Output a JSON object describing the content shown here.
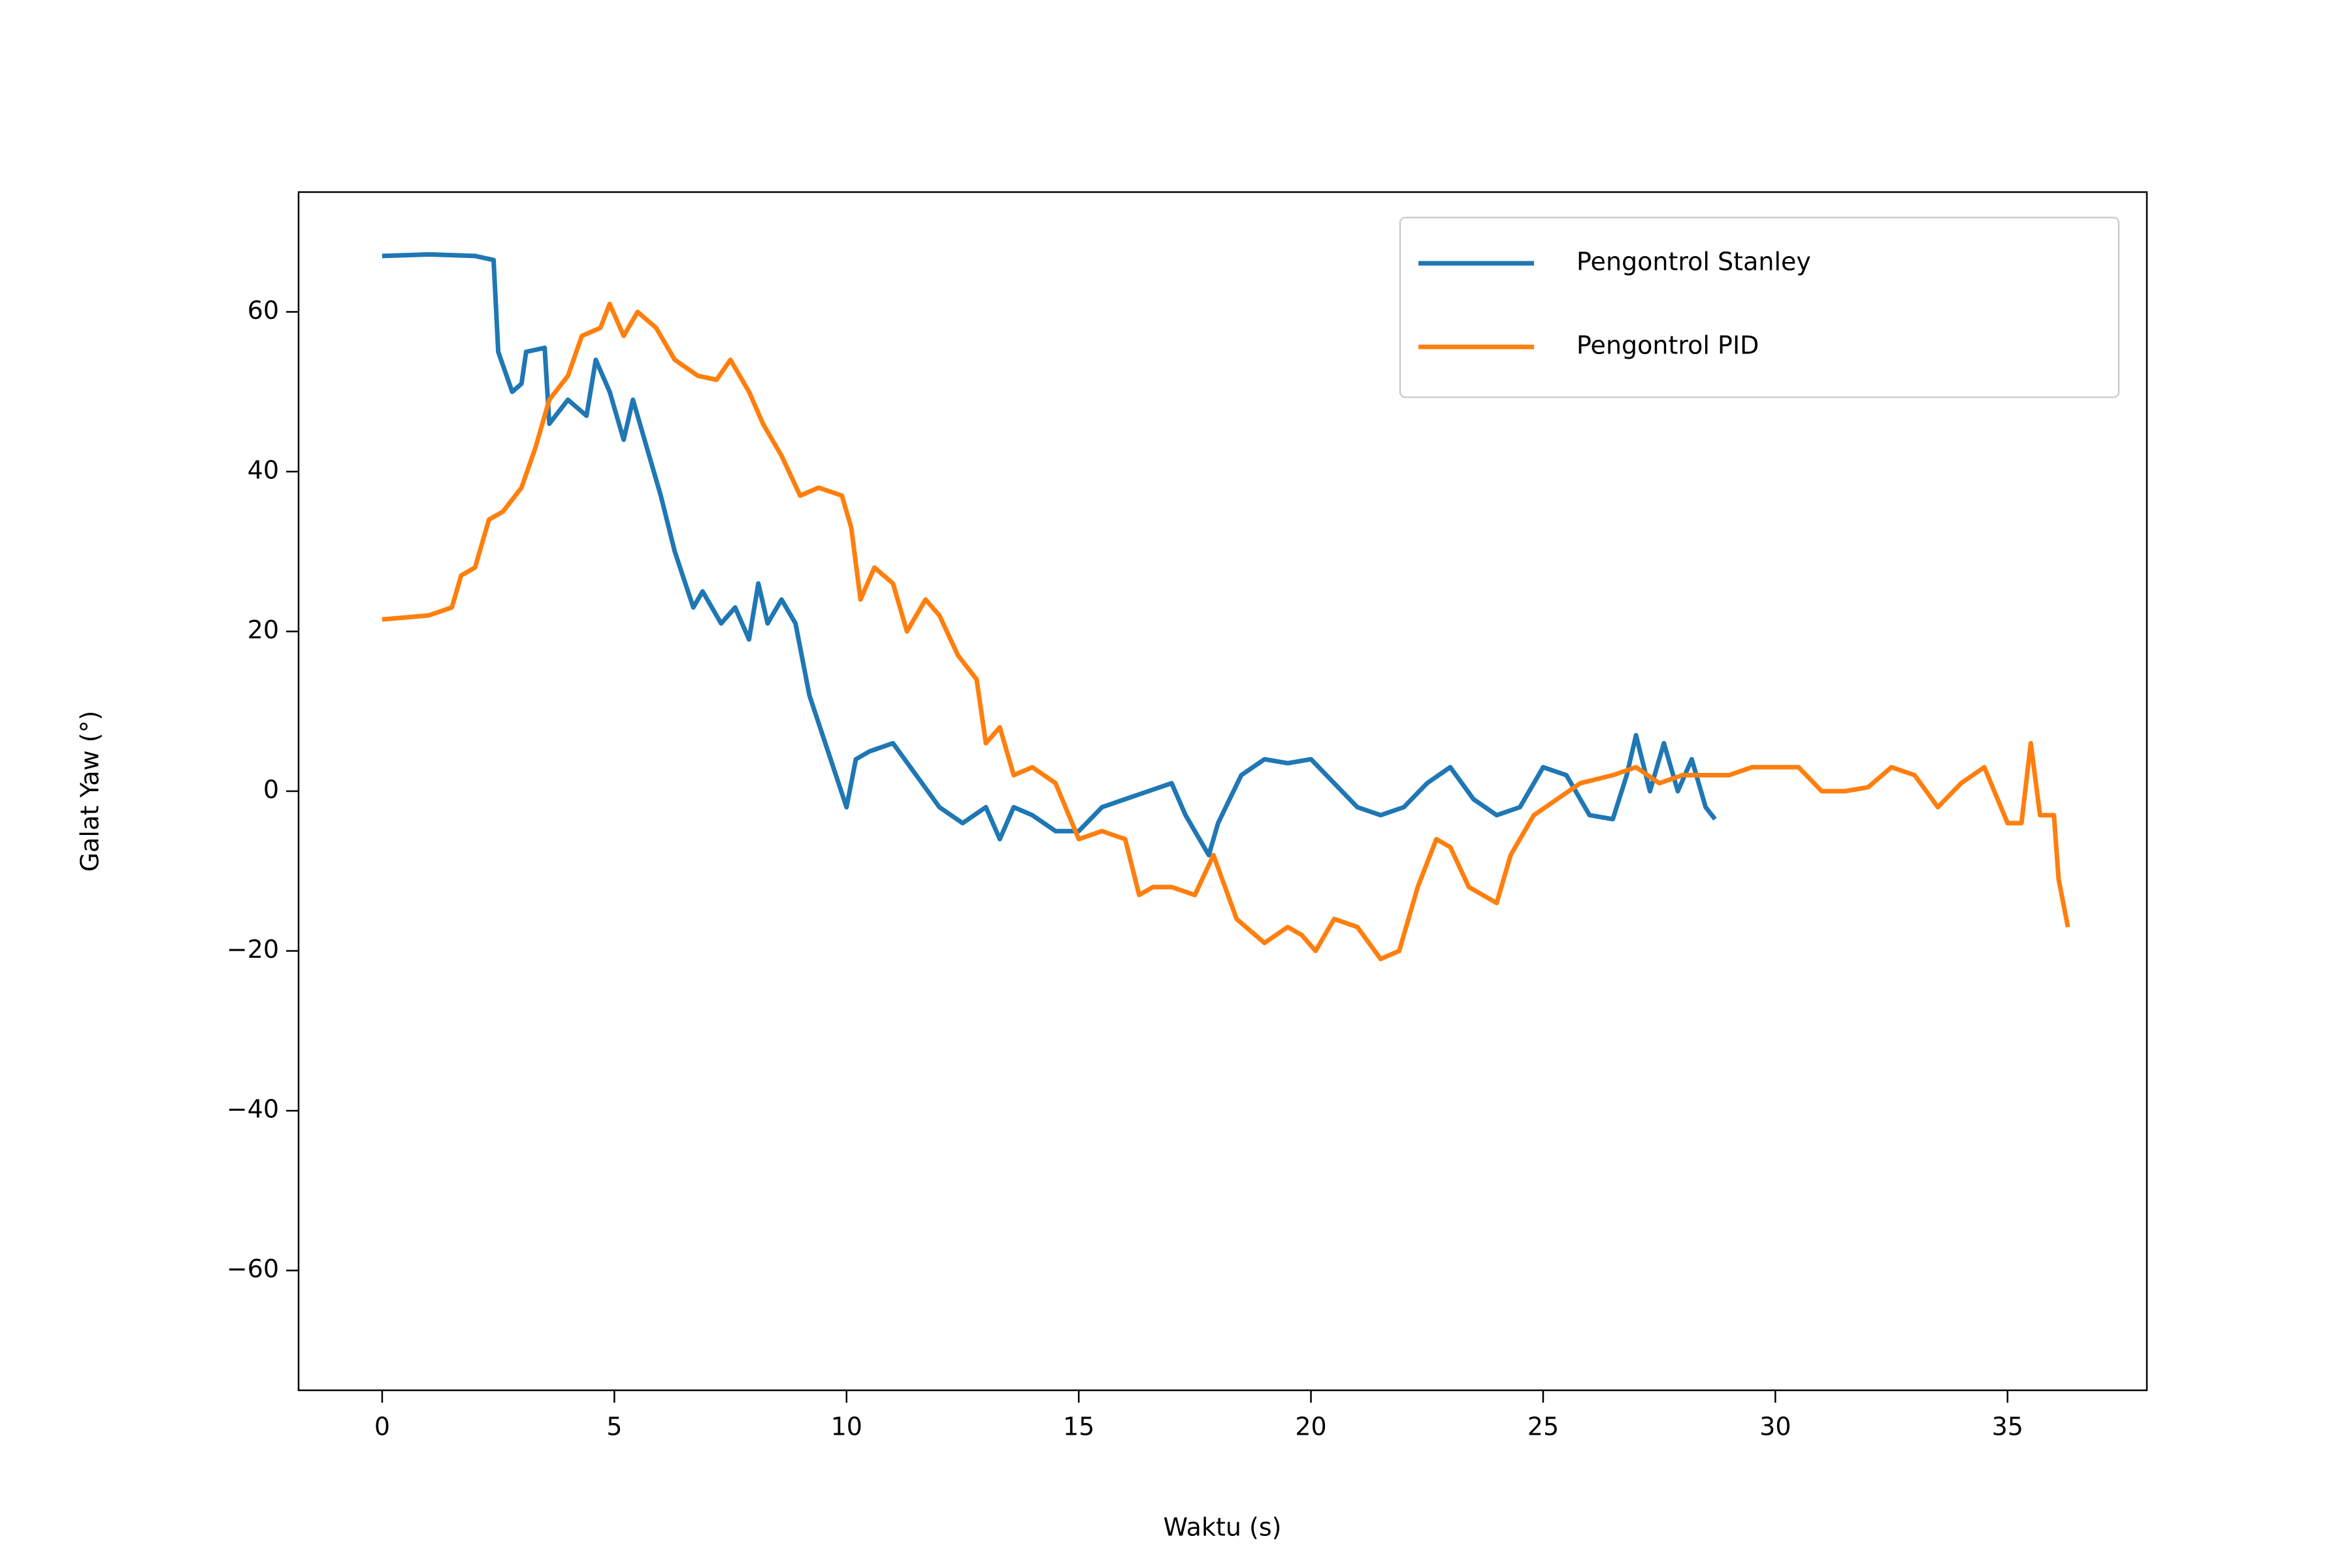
{
  "chart_data": {
    "type": "line",
    "xlabel": "Waktu (s)",
    "ylabel": "Galat Yaw (°)",
    "xlim": [
      -1.8,
      38.0
    ],
    "ylim": [
      -75,
      75
    ],
    "xticks": [
      0,
      5,
      10,
      15,
      20,
      25,
      30,
      35
    ],
    "yticks": [
      {
        "value": -60,
        "label": "−60"
      },
      {
        "value": -40,
        "label": "−40"
      },
      {
        "value": -20,
        "label": "−20"
      },
      0,
      20,
      40,
      60
    ],
    "legend": "upper right",
    "series": [
      {
        "name": "Pengontrol Stanley",
        "color": "#1f77b4",
        "x": [
          0,
          1,
          2,
          2.4,
          2.5,
          2.8,
          3.0,
          3.1,
          3.5,
          3.6,
          4.0,
          4.4,
          4.6,
          4.9,
          5.2,
          5.4,
          5.7,
          6.0,
          6.3,
          6.7,
          6.9,
          7.3,
          7.6,
          7.9,
          8.1,
          8.3,
          8.6,
          8.9,
          9.2,
          9.6,
          10.0,
          10.2,
          10.5,
          11.0,
          11.5,
          12.0,
          12.5,
          13.0,
          13.3,
          13.6,
          14.0,
          14.5,
          15.0,
          15.5,
          16.0,
          16.5,
          17.0,
          17.3,
          17.8,
          18.0,
          18.5,
          19.0,
          19.5,
          20.0,
          20.5,
          21.0,
          21.5,
          22.0,
          22.5,
          23.0,
          23.5,
          24.0,
          24.5,
          25.0,
          25.5,
          26.0,
          26.5,
          26.8,
          27.0,
          27.3,
          27.6,
          27.9,
          28.2,
          28.5,
          28.7
        ],
        "values": [
          67,
          67.2,
          67,
          66.5,
          55,
          50,
          51,
          55,
          55.5,
          46,
          49,
          47,
          54,
          50,
          44,
          49,
          43,
          37,
          30,
          23,
          25,
          21,
          23,
          19,
          26,
          21,
          24,
          21,
          12,
          5,
          -2,
          4,
          5,
          6,
          2,
          -2,
          -4,
          -2,
          -6,
          -2,
          -3,
          -5,
          -5,
          -2,
          -1,
          0,
          1,
          -3,
          -8,
          -4,
          2,
          4,
          3.5,
          4,
          1,
          -2,
          -3,
          -2,
          1,
          3,
          -1,
          -3,
          -2,
          3,
          2,
          -3,
          -3.5,
          2,
          7,
          0,
          6,
          0,
          4,
          -2,
          -3.5
        ]
      },
      {
        "name": "Pengontrol PID",
        "color": "#ff7f0e",
        "x": [
          0,
          1,
          1.5,
          1.7,
          2.0,
          2.3,
          2.6,
          3.0,
          3.3,
          3.6,
          4.0,
          4.3,
          4.7,
          4.9,
          5.2,
          5.5,
          5.9,
          6.3,
          6.8,
          7.2,
          7.5,
          7.9,
          8.2,
          8.6,
          9.0,
          9.4,
          9.9,
          10.1,
          10.3,
          10.6,
          11.0,
          11.3,
          11.7,
          12.0,
          12.4,
          12.8,
          13.0,
          13.3,
          13.6,
          14.0,
          14.5,
          15.0,
          15.5,
          16.0,
          16.3,
          16.6,
          17.0,
          17.5,
          17.9,
          18.4,
          19.0,
          19.5,
          19.8,
          20.1,
          20.5,
          21.0,
          21.5,
          21.9,
          22.3,
          22.7,
          23.0,
          23.4,
          24.0,
          24.3,
          24.8,
          25.3,
          25.8,
          26.5,
          27.0,
          27.5,
          28.0,
          28.5,
          29.0,
          29.5,
          30.0,
          30.5,
          31.0,
          31.5,
          32.0,
          32.5,
          33.0,
          33.5,
          34.0,
          34.5,
          35.0,
          35.3,
          35.5,
          35.7,
          36.0,
          36.1,
          36.3
        ],
        "values": [
          21.5,
          22,
          23,
          27,
          28,
          34,
          35,
          38,
          43,
          49,
          52,
          57,
          58,
          61,
          57,
          60,
          58,
          54,
          52,
          51.5,
          54,
          50,
          46,
          42,
          37,
          38,
          37,
          33,
          24,
          28,
          26,
          20,
          24,
          22,
          17,
          14,
          6,
          8,
          2,
          3,
          1,
          -6,
          -5,
          -6,
          -13,
          -12,
          -12,
          -13,
          -8,
          -16,
          -19,
          -17,
          -18,
          -20,
          -16,
          -17,
          -21,
          -20,
          -12,
          -6,
          -7,
          -12,
          -14,
          -8,
          -3,
          -1,
          1,
          2,
          3,
          1,
          2,
          2,
          2,
          3,
          3,
          3,
          0,
          0,
          0.5,
          3,
          2,
          -2,
          1,
          3,
          -4,
          -4,
          6,
          -3,
          -3,
          -11,
          -17
        ]
      }
    ]
  }
}
